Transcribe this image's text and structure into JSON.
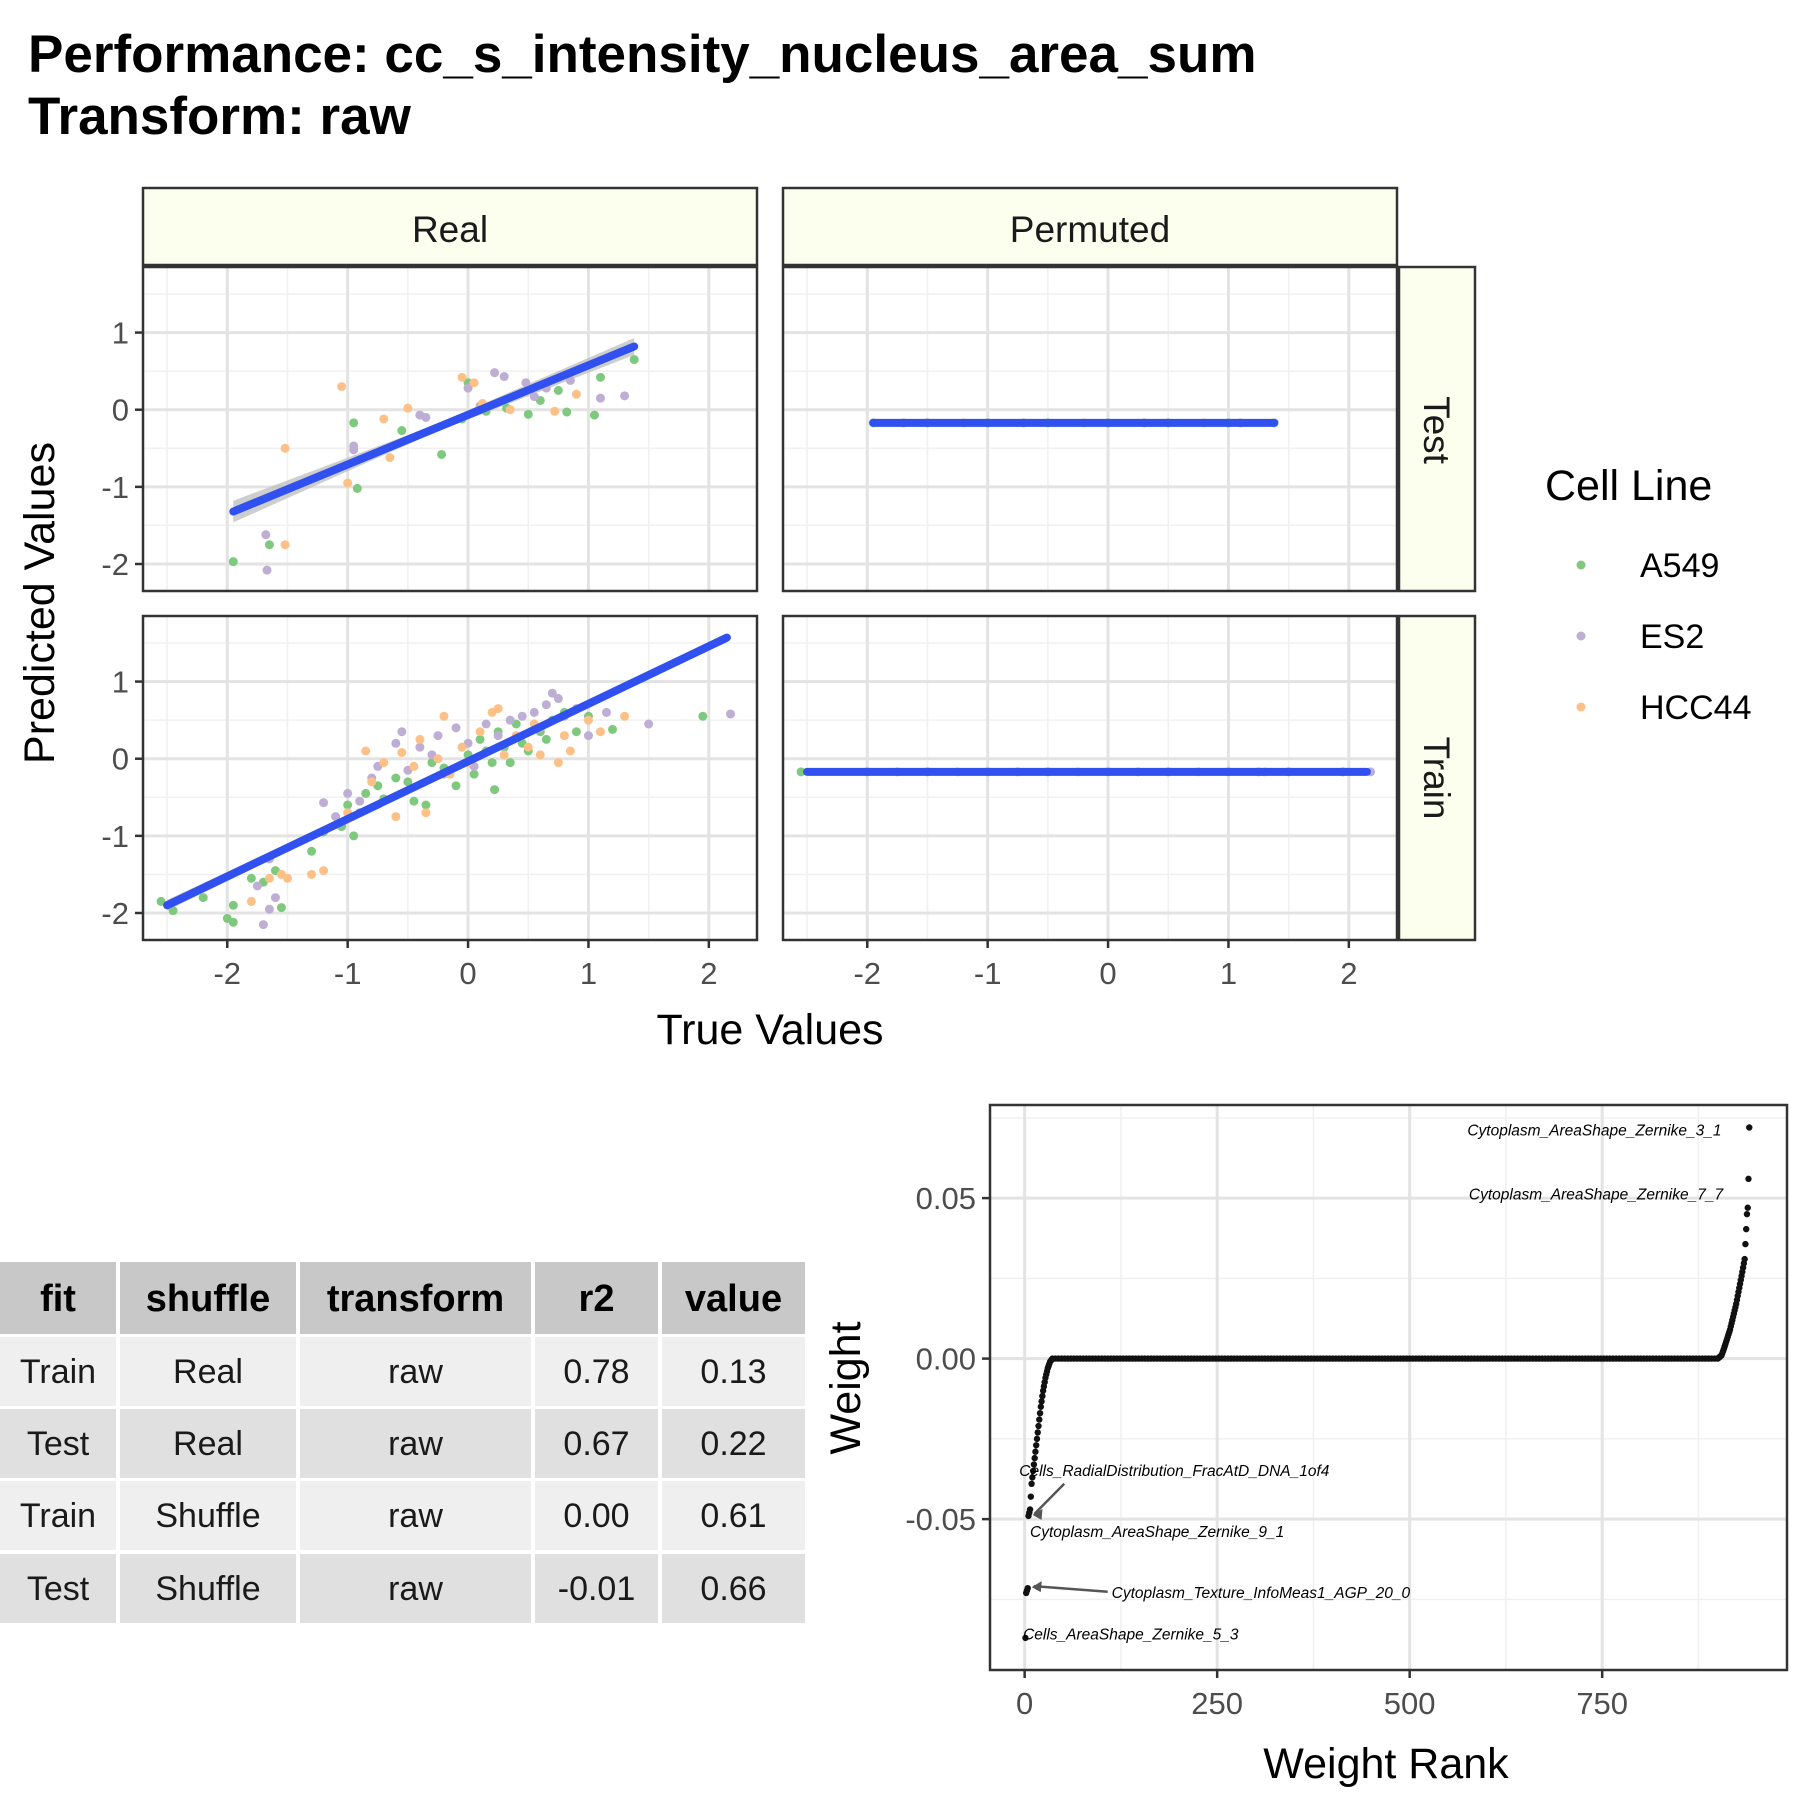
{
  "title_line1": "Performance: cc_s_intensity_nucleus_area_sum",
  "title_line2": "Transform: raw",
  "colors": {
    "A549": "#7fc97f",
    "ES2": "#beaed4",
    "HCC44": "#fdc086",
    "fit_line": "#3050f0",
    "ribbon": "#bdbdbd",
    "strip_fill": "#fcffee",
    "weight_points": "#111111"
  },
  "legend": {
    "title": "Cell Line",
    "items": [
      "A549",
      "ES2",
      "HCC44"
    ]
  },
  "chart_data": [
    {
      "type": "scatter",
      "facet": "Real / Test",
      "x_axis_label": "True Values",
      "y_axis_label": "Predicted Values",
      "xlim": [
        -2.7,
        2.4
      ],
      "ylim": [
        -2.35,
        1.85
      ],
      "x_ticks": [
        -2,
        -1,
        0,
        1,
        2
      ],
      "y_ticks": [
        -2,
        -1,
        0,
        1
      ],
      "x_tick_labels": [
        "-2",
        "-1",
        "0",
        "1",
        "2"
      ],
      "y_tick_labels": [
        "-2",
        "-1",
        "0",
        "1"
      ],
      "fit": {
        "x": [
          -1.95,
          1.38
        ],
        "y": [
          -1.32,
          0.82
        ],
        "se_halfwidth": [
          0.14,
          0.11
        ]
      },
      "points": {
        "A549": [
          [
            -1.95,
            -1.97
          ],
          [
            -1.65,
            -1.75
          ],
          [
            -0.95,
            -0.17
          ],
          [
            -0.92,
            -1.02
          ],
          [
            -0.55,
            -0.27
          ],
          [
            -0.22,
            -0.58
          ],
          [
            -0.05,
            -0.12
          ],
          [
            0.0,
            0.35
          ],
          [
            0.15,
            -0.02
          ],
          [
            0.32,
            0.02
          ],
          [
            0.5,
            -0.06
          ],
          [
            0.6,
            0.12
          ],
          [
            0.75,
            0.25
          ],
          [
            0.82,
            -0.03
          ],
          [
            1.05,
            -0.07
          ],
          [
            1.1,
            0.42
          ],
          [
            1.38,
            0.65
          ]
        ],
        "ES2": [
          [
            -1.68,
            -1.62
          ],
          [
            -1.67,
            -2.08
          ],
          [
            -0.95,
            -0.47
          ],
          [
            -0.95,
            -0.52
          ],
          [
            -0.4,
            -0.07
          ],
          [
            -0.35,
            -0.1
          ],
          [
            0.0,
            0.28
          ],
          [
            0.1,
            0.05
          ],
          [
            0.22,
            0.48
          ],
          [
            0.3,
            0.43
          ],
          [
            0.48,
            0.35
          ],
          [
            0.55,
            0.17
          ],
          [
            0.65,
            0.28
          ],
          [
            0.85,
            0.38
          ],
          [
            1.1,
            0.15
          ],
          [
            1.3,
            0.18
          ]
        ],
        "HCC44": [
          [
            -1.52,
            -0.5
          ],
          [
            -1.52,
            -1.75
          ],
          [
            -1.05,
            0.3
          ],
          [
            -1.0,
            -0.95
          ],
          [
            -0.7,
            -0.12
          ],
          [
            -0.65,
            -0.62
          ],
          [
            -0.5,
            0.02
          ],
          [
            -0.05,
            0.42
          ],
          [
            0.05,
            0.35
          ],
          [
            0.12,
            0.08
          ],
          [
            0.35,
            0.0
          ],
          [
            0.45,
            0.22
          ],
          [
            0.72,
            -0.02
          ],
          [
            0.9,
            0.2
          ]
        ]
      }
    },
    {
      "type": "scatter",
      "facet": "Permuted / Test",
      "xlim": [
        -2.7,
        2.4
      ],
      "ylim": [
        -2.35,
        1.85
      ],
      "x_ticks": [
        -2,
        -1,
        0,
        1,
        2
      ],
      "x_tick_labels": [
        "-2",
        "-1",
        "0",
        "1",
        "2"
      ],
      "fit": {
        "x": [
          -1.95,
          1.38
        ],
        "y": [
          -0.17,
          -0.17
        ],
        "se_halfwidth": [
          0.0,
          0.0
        ]
      },
      "points": {
        "A549": [
          [
            -1.95,
            -0.17
          ],
          [
            -1.5,
            -0.17
          ],
          [
            -1.0,
            -0.17
          ],
          [
            -0.5,
            -0.17
          ],
          [
            0.0,
            -0.17
          ],
          [
            0.5,
            -0.17
          ],
          [
            1.0,
            -0.17
          ],
          [
            1.38,
            -0.17
          ]
        ],
        "ES2": [
          [
            -1.7,
            -0.17
          ],
          [
            -0.7,
            -0.17
          ],
          [
            0.3,
            -0.17
          ],
          [
            1.1,
            -0.17
          ]
        ],
        "HCC44": [
          [
            -1.2,
            -0.17
          ],
          [
            -0.2,
            -0.17
          ],
          [
            0.8,
            -0.17
          ]
        ]
      }
    },
    {
      "type": "scatter",
      "facet": "Real / Train",
      "xlim": [
        -2.7,
        2.4
      ],
      "ylim": [
        -2.35,
        1.85
      ],
      "x_ticks": [
        -2,
        -1,
        0,
        1,
        2
      ],
      "y_ticks": [
        -2,
        -1,
        0,
        1
      ],
      "x_tick_labels": [
        "-2",
        "-1",
        "0",
        "1",
        "2"
      ],
      "y_tick_labels": [
        "-2",
        "-1",
        "0",
        "1"
      ],
      "fit": {
        "x": [
          -2.5,
          2.15
        ],
        "y": [
          -1.9,
          1.57
        ],
        "se_halfwidth": [
          0.07,
          0.06
        ]
      },
      "points": {
        "A549": [
          [
            -2.55,
            -1.85
          ],
          [
            -2.45,
            -1.97
          ],
          [
            -2.2,
            -1.8
          ],
          [
            -2.0,
            -2.07
          ],
          [
            -1.95,
            -1.9
          ],
          [
            -1.95,
            -2.12
          ],
          [
            -1.8,
            -1.55
          ],
          [
            -1.7,
            -1.6
          ],
          [
            -1.6,
            -1.45
          ],
          [
            -1.55,
            -1.93
          ],
          [
            -1.3,
            -1.2
          ],
          [
            -1.2,
            -0.95
          ],
          [
            -1.05,
            -0.88
          ],
          [
            -1.0,
            -0.6
          ],
          [
            -0.95,
            -1.0
          ],
          [
            -0.9,
            -0.7
          ],
          [
            -0.85,
            -0.45
          ],
          [
            -0.75,
            -0.35
          ],
          [
            -0.7,
            -0.52
          ],
          [
            -0.6,
            -0.25
          ],
          [
            -0.5,
            -0.3
          ],
          [
            -0.45,
            -0.55
          ],
          [
            -0.35,
            -0.6
          ],
          [
            -0.3,
            -0.05
          ],
          [
            -0.2,
            -0.12
          ],
          [
            -0.1,
            -0.35
          ],
          [
            0.0,
            0.05
          ],
          [
            0.05,
            -0.2
          ],
          [
            0.1,
            0.25
          ],
          [
            0.15,
            0.1
          ],
          [
            0.2,
            -0.05
          ],
          [
            0.25,
            0.35
          ],
          [
            0.3,
            0.15
          ],
          [
            0.35,
            -0.05
          ],
          [
            0.4,
            0.45
          ],
          [
            0.45,
            0.2
          ],
          [
            0.5,
            0.1
          ],
          [
            0.6,
            0.35
          ],
          [
            0.65,
            0.25
          ],
          [
            0.7,
            0.5
          ],
          [
            0.8,
            0.6
          ],
          [
            0.9,
            0.35
          ],
          [
            1.0,
            0.55
          ],
          [
            1.2,
            0.38
          ],
          [
            1.95,
            0.55
          ],
          [
            0.22,
            -0.4
          ]
        ],
        "ES2": [
          [
            -1.75,
            -1.65
          ],
          [
            -1.7,
            -2.15
          ],
          [
            -1.65,
            -1.95
          ],
          [
            -1.6,
            -1.8
          ],
          [
            -1.65,
            -1.3
          ],
          [
            -1.2,
            -0.57
          ],
          [
            -1.1,
            -0.75
          ],
          [
            -1.0,
            -0.45
          ],
          [
            -0.9,
            -0.55
          ],
          [
            -0.8,
            -0.25
          ],
          [
            -0.75,
            -0.1
          ],
          [
            -0.6,
            0.2
          ],
          [
            -0.55,
            0.35
          ],
          [
            -0.5,
            -0.15
          ],
          [
            -0.4,
            0.15
          ],
          [
            -0.3,
            0.05
          ],
          [
            -0.25,
            0.3
          ],
          [
            -0.2,
            -0.2
          ],
          [
            -0.1,
            0.4
          ],
          [
            0.0,
            0.2
          ],
          [
            0.05,
            -0.1
          ],
          [
            0.15,
            0.45
          ],
          [
            0.25,
            0.3
          ],
          [
            0.35,
            0.5
          ],
          [
            0.45,
            0.55
          ],
          [
            0.55,
            0.6
          ],
          [
            0.6,
            0.4
          ],
          [
            0.65,
            0.7
          ],
          [
            0.7,
            0.85
          ],
          [
            0.75,
            0.78
          ],
          [
            0.8,
            0.55
          ],
          [
            0.9,
            0.65
          ],
          [
            1.0,
            0.3
          ],
          [
            1.15,
            0.6
          ],
          [
            1.5,
            0.45
          ],
          [
            2.18,
            0.58
          ]
        ],
        "HCC44": [
          [
            -1.8,
            -1.85
          ],
          [
            -1.65,
            -1.55
          ],
          [
            -1.55,
            -1.5
          ],
          [
            -1.5,
            -1.55
          ],
          [
            -1.3,
            -1.5
          ],
          [
            -1.2,
            -1.45
          ],
          [
            -1.0,
            -0.7
          ],
          [
            -0.85,
            0.1
          ],
          [
            -0.8,
            -0.3
          ],
          [
            -0.7,
            -0.05
          ],
          [
            -0.6,
            -0.75
          ],
          [
            -0.55,
            0.08
          ],
          [
            -0.45,
            -0.1
          ],
          [
            -0.4,
            0.25
          ],
          [
            -0.35,
            -0.7
          ],
          [
            -0.25,
            0.0
          ],
          [
            -0.2,
            0.55
          ],
          [
            -0.15,
            -0.2
          ],
          [
            -0.05,
            0.15
          ],
          [
            0.0,
            -0.05
          ],
          [
            0.1,
            0.35
          ],
          [
            0.2,
            0.6
          ],
          [
            0.25,
            0.65
          ],
          [
            0.3,
            0.05
          ],
          [
            0.4,
            0.3
          ],
          [
            0.5,
            0.15
          ],
          [
            0.55,
            0.45
          ],
          [
            0.6,
            0.05
          ],
          [
            0.75,
            -0.05
          ],
          [
            0.8,
            0.3
          ],
          [
            0.85,
            0.1
          ],
          [
            1.0,
            0.5
          ],
          [
            1.1,
            0.35
          ],
          [
            1.3,
            0.55
          ]
        ]
      }
    },
    {
      "type": "scatter",
      "facet": "Permuted / Train",
      "x_axis_label": "True Values",
      "xlim": [
        -2.7,
        2.4
      ],
      "ylim": [
        -2.35,
        1.85
      ],
      "x_ticks": [
        -2,
        -1,
        0,
        1,
        2
      ],
      "x_tick_labels": [
        "-2",
        "-1",
        "0",
        "1",
        "2"
      ],
      "fit": {
        "x": [
          -2.5,
          2.15
        ],
        "y": [
          -0.17,
          -0.17
        ],
        "se_halfwidth": [
          0.0,
          0.0
        ]
      },
      "points": {
        "A549": [
          [
            -2.55,
            -0.17
          ],
          [
            -2.0,
            -0.17
          ],
          [
            -1.5,
            -0.17
          ],
          [
            -1.0,
            -0.17
          ],
          [
            -0.5,
            -0.17
          ],
          [
            0.0,
            -0.17
          ],
          [
            0.5,
            -0.17
          ],
          [
            1.0,
            -0.17
          ],
          [
            1.5,
            -0.17
          ],
          [
            1.95,
            -0.17
          ]
        ],
        "ES2": [
          [
            -1.75,
            -0.17
          ],
          [
            -0.75,
            -0.17
          ],
          [
            0.25,
            -0.17
          ],
          [
            1.25,
            -0.17
          ],
          [
            2.18,
            -0.17
          ]
        ],
        "HCC44": [
          [
            -1.25,
            -0.17
          ],
          [
            -0.25,
            -0.17
          ],
          [
            0.75,
            -0.17
          ],
          [
            1.3,
            -0.17
          ]
        ]
      }
    },
    {
      "type": "table",
      "columns": [
        "fit",
        "shuffle",
        "transform",
        "r2",
        "value"
      ],
      "rows": [
        [
          "Train",
          "Real",
          "raw",
          "0.78",
          "0.13"
        ],
        [
          "Test",
          "Real",
          "raw",
          "0.67",
          "0.22"
        ],
        [
          "Train",
          "Shuffle",
          "raw",
          "0.00",
          "0.61"
        ],
        [
          "Test",
          "Shuffle",
          "raw",
          "-0.01",
          "0.66"
        ]
      ]
    },
    {
      "type": "scatter",
      "facet": "weights",
      "x_axis_label": "Weight Rank",
      "y_axis_label": "Weight",
      "xlim": [
        -45,
        990
      ],
      "ylim": [
        -0.097,
        0.079
      ],
      "x_ticks": [
        0,
        250,
        500,
        750
      ],
      "x_tick_labels": [
        "0",
        "250",
        "500",
        "750"
      ],
      "y_ticks": [
        -0.05,
        0.0,
        0.05
      ],
      "y_tick_labels": [
        "-0.05",
        "0.00",
        "0.05"
      ],
      "grid": true,
      "curve": [
        [
          1,
          -0.087
        ],
        [
          2,
          -0.073
        ],
        [
          4,
          -0.0715
        ],
        [
          5,
          -0.049
        ],
        [
          7,
          -0.047
        ],
        [
          9,
          -0.039
        ],
        [
          12,
          -0.033
        ],
        [
          15,
          -0.027
        ],
        [
          18,
          -0.021
        ],
        [
          21,
          -0.015
        ],
        [
          24,
          -0.01
        ],
        [
          27,
          -0.006
        ],
        [
          30,
          -0.003
        ],
        [
          33,
          -0.001
        ],
        [
          36,
          0.0
        ],
        [
          900,
          0.0
        ],
        [
          905,
          0.001
        ],
        [
          908,
          0.003
        ],
        [
          912,
          0.006
        ],
        [
          916,
          0.009
        ],
        [
          920,
          0.013
        ],
        [
          924,
          0.017
        ],
        [
          928,
          0.022
        ],
        [
          932,
          0.027
        ],
        [
          935,
          0.031
        ],
        [
          938,
          0.045
        ],
        [
          939,
          0.047
        ],
        [
          940,
          0.056
        ],
        [
          941,
          0.072
        ]
      ],
      "annotations": [
        {
          "text": "Cytoplasm_AreaShape_Zernike_3_1",
          "point": [
            941,
            0.072
          ],
          "label_at": [
            905,
            0.0695
          ],
          "anchor": "end",
          "arrow": false
        },
        {
          "text": "Cytoplasm_AreaShape_Zernike_7_7",
          "point": [
            939,
            0.047
          ],
          "label_at": [
            907,
            0.0495
          ],
          "anchor": "end",
          "arrow": false
        },
        {
          "text": "Cells_RadialDistribution_FracAtD_DNA_1of4",
          "point": [
            5,
            -0.049
          ],
          "label_at": [
            -7,
            -0.0365
          ],
          "anchor": "start",
          "arrow": true
        },
        {
          "text": "Cytoplasm_AreaShape_Zernike_9_1",
          "point": [
            7,
            -0.047
          ],
          "label_at": [
            7,
            -0.0555
          ],
          "anchor": "start",
          "arrow": false
        },
        {
          "text": "Cytoplasm_Texture_InfoMeas1_AGP_20_0",
          "point": [
            4,
            -0.0715
          ],
          "label_at": [
            113,
            -0.0745
          ],
          "anchor": "start",
          "arrow": true
        },
        {
          "text": "Cells_AreaShape_Zernike_5_3",
          "point": [
            1,
            -0.087
          ],
          "label_at": [
            -2,
            -0.0875
          ],
          "anchor": "start",
          "arrow": false
        }
      ]
    }
  ],
  "facets": {
    "col_labels": [
      "Real",
      "Permuted"
    ],
    "row_labels": [
      "Test",
      "Train"
    ]
  }
}
